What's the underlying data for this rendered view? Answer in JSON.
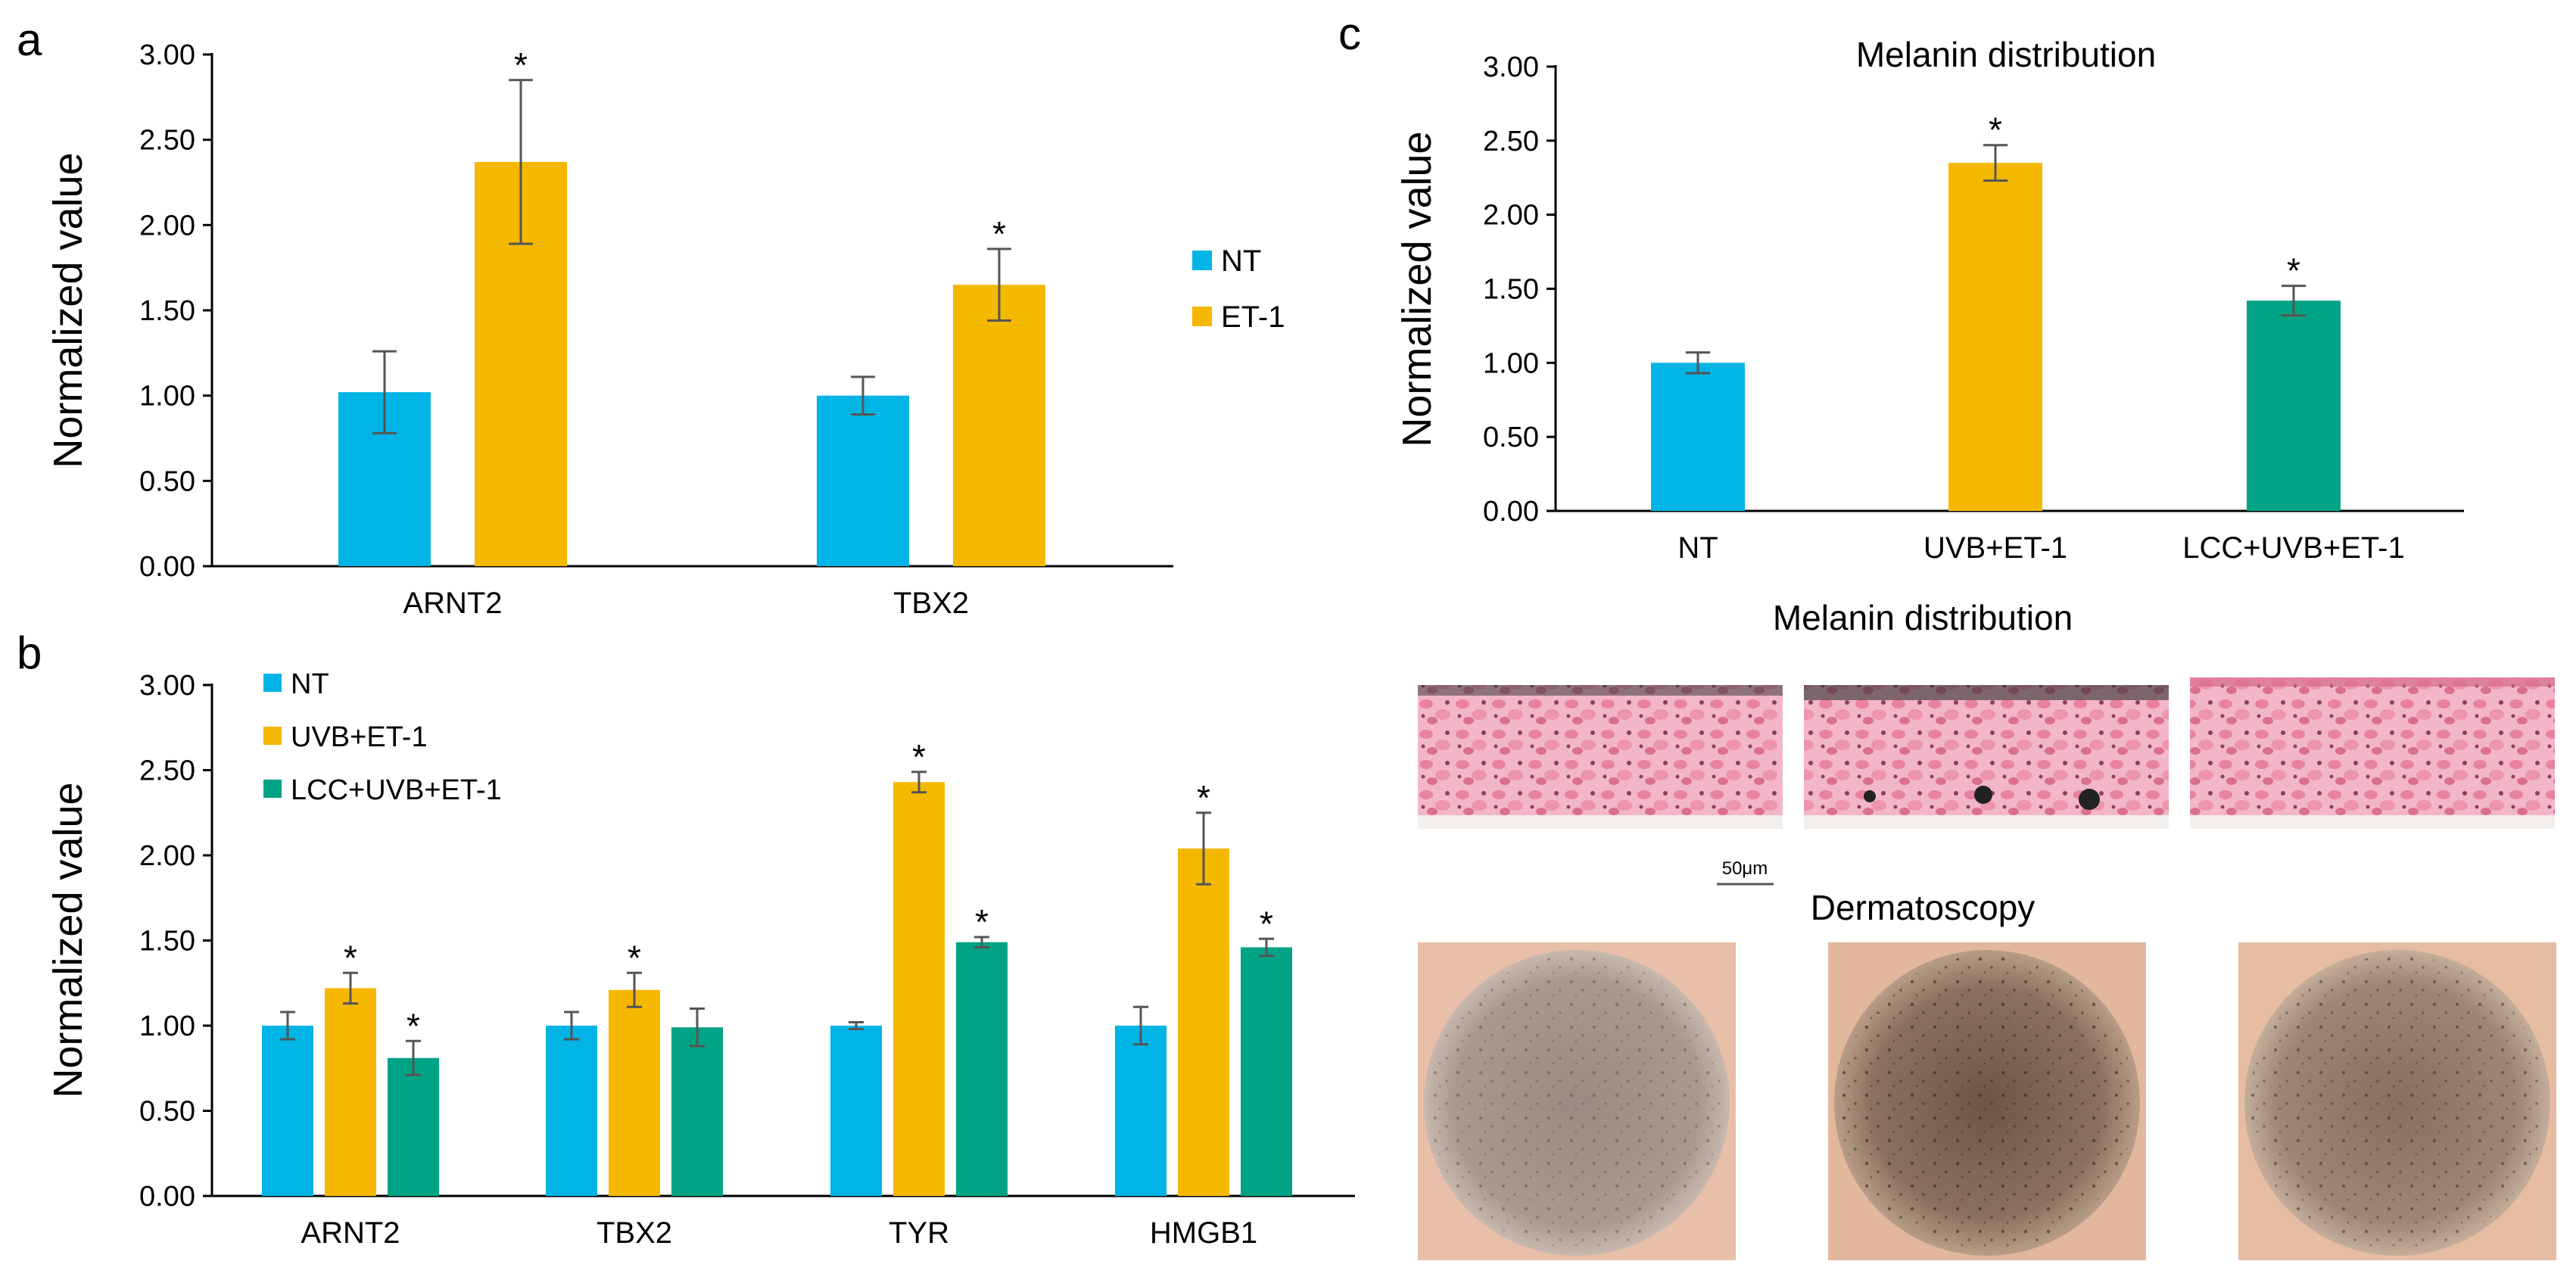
{
  "panels": {
    "a": "a",
    "b": "b",
    "c": "c"
  },
  "colors": {
    "NT": "#00b4e6",
    "ET-1": "#f5b800",
    "UVB+ET-1": "#f5b800",
    "LCC+UVB+ET-1": "#00a383",
    "error": "#555555",
    "axis": "#000000"
  },
  "chart_data": [
    {
      "id": "a",
      "type": "bar",
      "title": "",
      "xlabel": "",
      "ylabel": "Normalized value",
      "ylim": [
        0,
        3
      ],
      "yticks": [
        "0.00",
        "0.50",
        "1.00",
        "1.50",
        "2.00",
        "2.50",
        "3.00"
      ],
      "categories": [
        "ARNT2",
        "TBX2"
      ],
      "legend": "right",
      "series": [
        {
          "name": "NT",
          "values": [
            1.02,
            1.0
          ],
          "errors": [
            0.24,
            0.11
          ],
          "sig": [
            "",
            ""
          ]
        },
        {
          "name": "ET-1",
          "values": [
            2.37,
            1.65
          ],
          "errors": [
            0.48,
            0.21
          ],
          "sig": [
            "*",
            "*"
          ]
        }
      ]
    },
    {
      "id": "b",
      "type": "bar",
      "title": "",
      "xlabel": "",
      "ylabel": "Normalized value",
      "ylim": [
        0,
        3
      ],
      "yticks": [
        "0.00",
        "0.50",
        "1.00",
        "1.50",
        "2.00",
        "2.50",
        "3.00"
      ],
      "categories": [
        "ARNT2",
        "TBX2",
        "TYR",
        "HMGB1"
      ],
      "legend": "top-left",
      "series": [
        {
          "name": "NT",
          "values": [
            1.0,
            1.0,
            1.0,
            1.0
          ],
          "errors": [
            0.08,
            0.08,
            0.02,
            0.11
          ],
          "sig": [
            "",
            "",
            "",
            ""
          ]
        },
        {
          "name": "UVB+ET-1",
          "values": [
            1.22,
            1.21,
            2.43,
            2.04
          ],
          "errors": [
            0.09,
            0.1,
            0.06,
            0.21
          ],
          "sig": [
            "*",
            "*",
            "*",
            "*"
          ]
        },
        {
          "name": "LCC+UVB+ET-1",
          "values": [
            0.81,
            0.99,
            1.49,
            1.46
          ],
          "errors": [
            0.1,
            0.11,
            0.03,
            0.05
          ],
          "sig": [
            "*",
            "",
            "*",
            "*"
          ]
        }
      ]
    },
    {
      "id": "c",
      "type": "bar",
      "title": "Melanin distribution",
      "xlabel": "",
      "ylabel": "Normalized value",
      "ylim": [
        0,
        3
      ],
      "yticks": [
        "0.00",
        "0.50",
        "1.00",
        "1.50",
        "2.00",
        "2.50",
        "3.00"
      ],
      "categories": [
        "NT",
        "UVB+ET-1",
        "LCC+UVB+ET-1"
      ],
      "series": [
        {
          "name": "",
          "values": [
            1.0,
            2.35,
            1.42
          ],
          "errors": [
            0.07,
            0.12,
            0.1
          ],
          "sig": [
            "",
            "*",
            "*"
          ],
          "colors": [
            "#00b4e6",
            "#f5b800",
            "#00a383"
          ]
        }
      ]
    }
  ],
  "images": {
    "histology_title": "Melanin distribution",
    "scale_bar": "50μm",
    "dermatoscopy_title": "Dermatoscopy"
  }
}
